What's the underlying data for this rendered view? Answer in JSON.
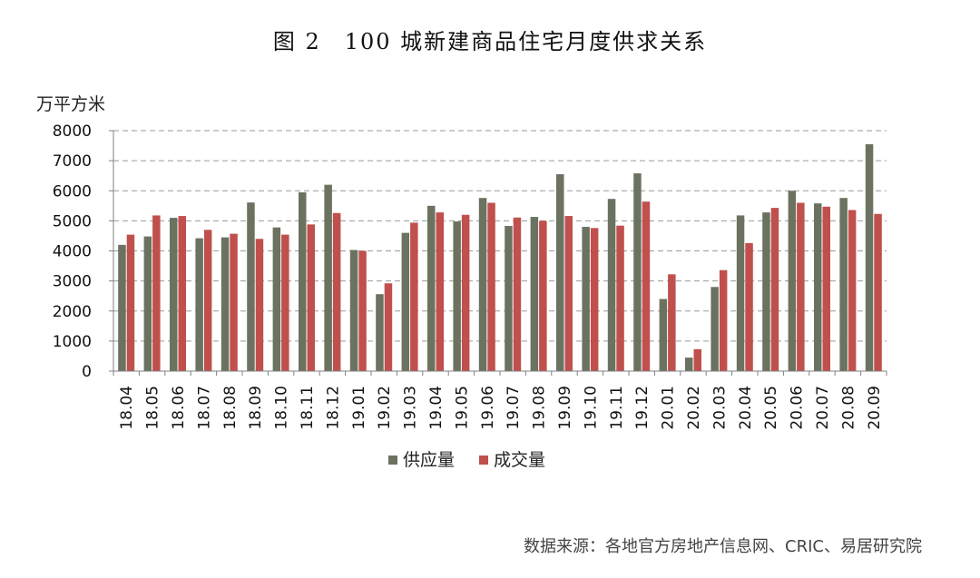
{
  "title": "图 2　100 城新建商品住宅月度供求关系",
  "unit_label": "万平方米",
  "source": "数据来源：各地官方房地产信息网、CRIC、易居研究院",
  "colors": {
    "supply": "#6b7360",
    "deal": "#c0504d",
    "grid": "#9a9a9a",
    "axis": "#808080"
  },
  "chart_data": {
    "type": "bar",
    "title": "图 2　100 城新建商品住宅月度供求关系",
    "ylabel": "万平方米",
    "xlabel": "",
    "ylim": [
      0,
      8000
    ],
    "yticks": [
      0,
      1000,
      2000,
      3000,
      4000,
      5000,
      6000,
      7000,
      8000
    ],
    "grid": "horizontal dashed",
    "legend_position": "bottom",
    "categories": [
      "18.04",
      "18.05",
      "18.06",
      "18.07",
      "18.08",
      "18.09",
      "18.10",
      "18.11",
      "18.12",
      "19.01",
      "19.02",
      "19.03",
      "19.04",
      "19.05",
      "19.06",
      "19.07",
      "19.08",
      "19.09",
      "19.10",
      "19.11",
      "19.12",
      "20.01",
      "20.02",
      "20.03",
      "20.04",
      "20.05",
      "20.06",
      "20.07",
      "20.08",
      "20.09"
    ],
    "series": [
      {
        "name": "供应量",
        "color": "#6b7360",
        "values": [
          4200,
          4480,
          5100,
          4420,
          4450,
          5610,
          4780,
          5950,
          6200,
          4030,
          2560,
          4600,
          5500,
          4980,
          5760,
          4830,
          5130,
          6550,
          4800,
          5730,
          6580,
          2400,
          450,
          2800,
          5180,
          5280,
          6000,
          5580,
          5760,
          7550
        ]
      },
      {
        "name": "成交量",
        "color": "#c0504d",
        "values": [
          4540,
          5180,
          5160,
          4700,
          4570,
          4400,
          4540,
          4880,
          5260,
          4000,
          2920,
          4940,
          5280,
          5200,
          5600,
          5110,
          5000,
          5160,
          4760,
          4840,
          5640,
          3220,
          730,
          3360,
          4260,
          5430,
          5600,
          5470,
          5360,
          5230
        ]
      }
    ]
  }
}
